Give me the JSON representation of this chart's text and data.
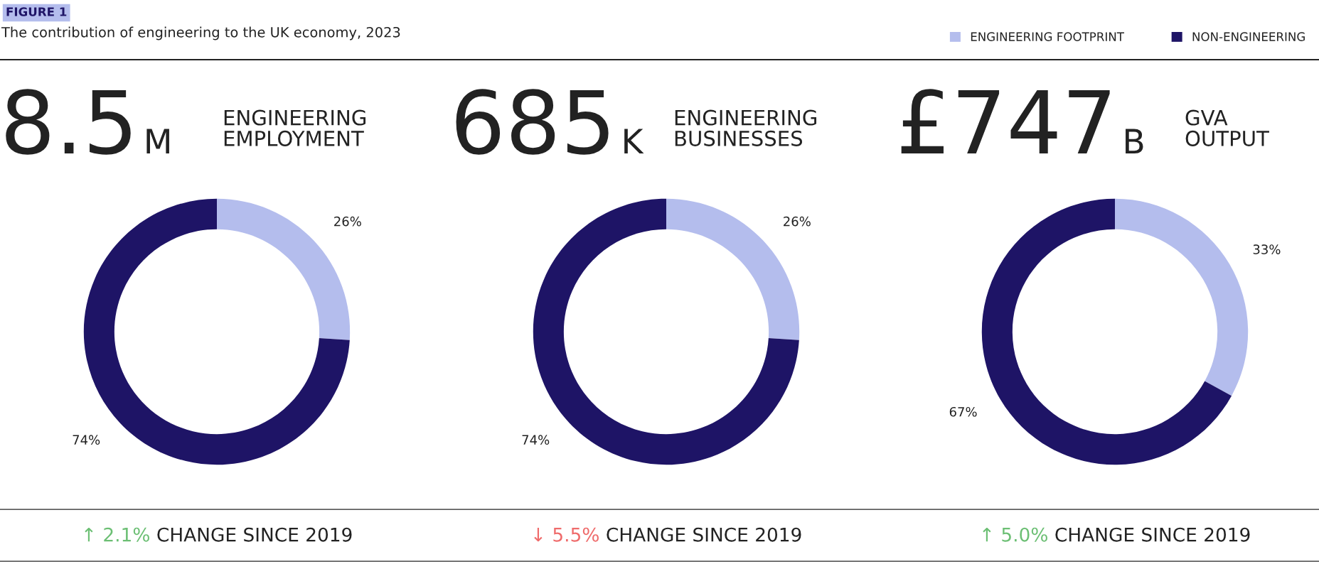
{
  "chart_data": [
    {
      "type": "donut",
      "title": "FIGURE 1",
      "subtitle": "The contribution of engineering to the UK economy, 2023",
      "legend": "top right",
      "categories": [
        "ENGINEERING FOOTPRINT",
        "NON-ENGINEERING"
      ],
      "values": [
        26,
        74
      ],
      "colors": [
        "#b4bded",
        "#1e1466"
      ],
      "value_labels": [
        "26%",
        "74%"
      ],
      "annotations": [
        "8.5",
        "M",
        "ENGINEERING\nEMPLOYMENT",
        "↑ 2.1%",
        "CHANGE SINCE 2019"
      ]
    },
    {
      "type": "donut",
      "categories": [
        null,
        null
      ],
      "values": [
        26,
        74
      ],
      "colors": [
        "#b4bded",
        "#1e1466"
      ],
      "value_labels": [
        "26%",
        "74%"
      ],
      "annotations": [
        "685",
        "K",
        "ENGINEERING\nBUSINESSES",
        "↓ 5.5%",
        "CHANGE SINCE 2019"
      ]
    },
    {
      "type": "donut",
      "categories": [
        null,
        null
      ],
      "values": [
        33,
        67
      ],
      "colors": [
        "#b4bded",
        "#1e1466"
      ],
      "value_labels": [
        "33%",
        "67%"
      ],
      "annotations": [
        "£747",
        "B",
        "GVA\nOUTPUT",
        "↑ 5.0%",
        "CHANGE SINCE 2019"
      ]
    }
  ]
}
